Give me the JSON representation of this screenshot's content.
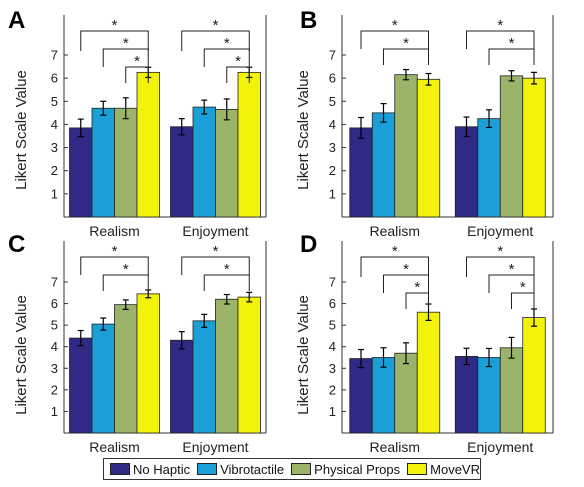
{
  "legend": {
    "entries": [
      {
        "name": "No Haptic",
        "color": "#2e2a86"
      },
      {
        "name": "Vibrotactile",
        "color": "#1a9fd6"
      },
      {
        "name": "Physical Props",
        "color": "#9bb46a"
      },
      {
        "name": "MoveVR",
        "color": "#f2f20a"
      }
    ]
  },
  "chart_data": [
    {
      "type": "bar",
      "panel": "A",
      "ylabel": "Likert Scale Value",
      "yticks": [
        1,
        2,
        3,
        4,
        5,
        6,
        7
      ],
      "ylim": [
        0,
        7
      ],
      "categories": [
        "Realism",
        "Enjoyment"
      ],
      "series": [
        {
          "name": "No Haptic",
          "values": [
            3.85,
            3.9
          ],
          "errors": [
            0.38,
            0.35
          ]
        },
        {
          "name": "Vibrotactile",
          "values": [
            4.7,
            4.75
          ],
          "errors": [
            0.3,
            0.3
          ]
        },
        {
          "name": "Physical Props",
          "values": [
            4.7,
            4.65
          ],
          "errors": [
            0.45,
            0.45
          ]
        },
        {
          "name": "MoveVR",
          "values": [
            6.25,
            6.25
          ],
          "errors": [
            0.22,
            0.22
          ]
        }
      ],
      "significance": [
        {
          "label": "*",
          "from": 0,
          "to": 3
        },
        {
          "label": "*",
          "from": 1,
          "to": 3
        },
        {
          "label": "*",
          "from": 2,
          "to": 3
        }
      ]
    },
    {
      "type": "bar",
      "panel": "B",
      "ylabel": "Likert Scale Value",
      "yticks": [
        1,
        2,
        3,
        4,
        5,
        6,
        7
      ],
      "ylim": [
        0,
        7
      ],
      "categories": [
        "Realism",
        "Enjoyment"
      ],
      "series": [
        {
          "name": "No Haptic",
          "values": [
            3.85,
            3.9
          ],
          "errors": [
            0.45,
            0.42
          ]
        },
        {
          "name": "Vibrotactile",
          "values": [
            4.5,
            4.25
          ],
          "errors": [
            0.4,
            0.38
          ]
        },
        {
          "name": "Physical Props",
          "values": [
            6.15,
            6.1
          ],
          "errors": [
            0.22,
            0.22
          ]
        },
        {
          "name": "MoveVR",
          "values": [
            5.95,
            6.0
          ],
          "errors": [
            0.25,
            0.25
          ]
        }
      ],
      "significance": [
        {
          "label": "*",
          "from": 0,
          "to": 3
        },
        {
          "label": "*",
          "from": 1,
          "to": 3
        }
      ]
    },
    {
      "type": "bar",
      "panel": "C",
      "ylabel": "Likert Scale Value",
      "yticks": [
        1,
        2,
        3,
        4,
        5,
        6,
        7
      ],
      "ylim": [
        0,
        7
      ],
      "categories": [
        "Realism",
        "Enjoyment"
      ],
      "series": [
        {
          "name": "No Haptic",
          "values": [
            4.4,
            4.3
          ],
          "errors": [
            0.35,
            0.4
          ]
        },
        {
          "name": "Vibrotactile",
          "values": [
            5.05,
            5.2
          ],
          "errors": [
            0.28,
            0.3
          ]
        },
        {
          "name": "Physical Props",
          "values": [
            5.95,
            6.2
          ],
          "errors": [
            0.22,
            0.22
          ]
        },
        {
          "name": "MoveVR",
          "values": [
            6.45,
            6.3
          ],
          "errors": [
            0.18,
            0.22
          ]
        }
      ],
      "significance": [
        {
          "label": "*",
          "from": 0,
          "to": 3
        },
        {
          "label": "*",
          "from": 1,
          "to": 3
        }
      ]
    },
    {
      "type": "bar",
      "panel": "D",
      "ylabel": "Likert Scale Value",
      "yticks": [
        1,
        2,
        3,
        4,
        5,
        6,
        7
      ],
      "ylim": [
        0,
        7
      ],
      "categories": [
        "Realism",
        "Enjoyment"
      ],
      "series": [
        {
          "name": "No Haptic",
          "values": [
            3.45,
            3.55
          ],
          "errors": [
            0.42,
            0.38
          ]
        },
        {
          "name": "Vibrotactile",
          "values": [
            3.5,
            3.5
          ],
          "errors": [
            0.45,
            0.42
          ]
        },
        {
          "name": "Physical Props",
          "values": [
            3.7,
            3.95
          ],
          "errors": [
            0.48,
            0.48
          ]
        },
        {
          "name": "MoveVR",
          "values": [
            5.6,
            5.35
          ],
          "errors": [
            0.38,
            0.4
          ]
        }
      ],
      "significance": [
        {
          "label": "*",
          "from": 0,
          "to": 3
        },
        {
          "label": "*",
          "from": 1,
          "to": 3
        },
        {
          "label": "*",
          "from": 2,
          "to": 3
        }
      ]
    }
  ]
}
